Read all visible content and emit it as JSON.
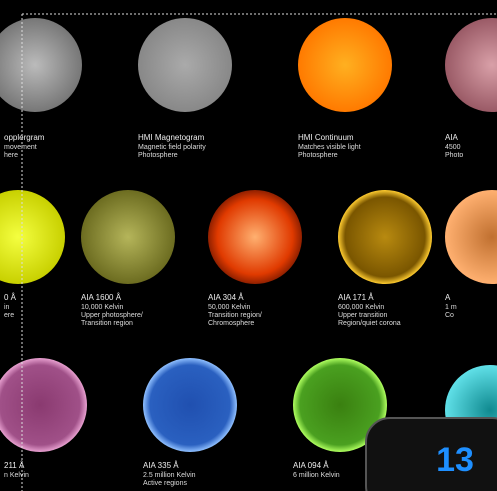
{
  "panels": [
    {
      "title": "opplergram",
      "lines": [
        "movement",
        "here"
      ]
    },
    {
      "title": "HMI Magnetogram",
      "lines": [
        "Magnetic field polarity",
        "Photosphere"
      ]
    },
    {
      "title": "HMI Continuum",
      "lines": [
        "Matches visible light",
        "Photosphere"
      ]
    },
    {
      "title": "AIA",
      "lines": [
        "4500",
        "Photo"
      ]
    },
    {
      "title": "0 Å",
      "lines": [
        "in",
        "ere"
      ]
    },
    {
      "title": "AIA 1600 Å",
      "lines": [
        "10,000 Kelvin",
        "Upper photosphere/",
        "Transition region"
      ]
    },
    {
      "title": "AIA 304 Å",
      "lines": [
        "50,000 Kelvin",
        "Transition region/",
        "Chromosphere"
      ]
    },
    {
      "title": "AIA 171 Å",
      "lines": [
        "600,000 Kelvin",
        "Upper transition",
        "Region/quiet corona"
      ]
    },
    {
      "title": "A",
      "lines": [
        "1 m",
        "Co"
      ]
    },
    {
      "title": "211 Å",
      "lines": [
        "n Kelvin"
      ]
    },
    {
      "title": "AIA 335 Å",
      "lines": [
        "2.5 million Kelvin",
        "Active regions"
      ]
    },
    {
      "title": "AIA 094 Å",
      "lines": [
        "6 million Kelvin"
      ]
    }
  ],
  "badge": "13"
}
